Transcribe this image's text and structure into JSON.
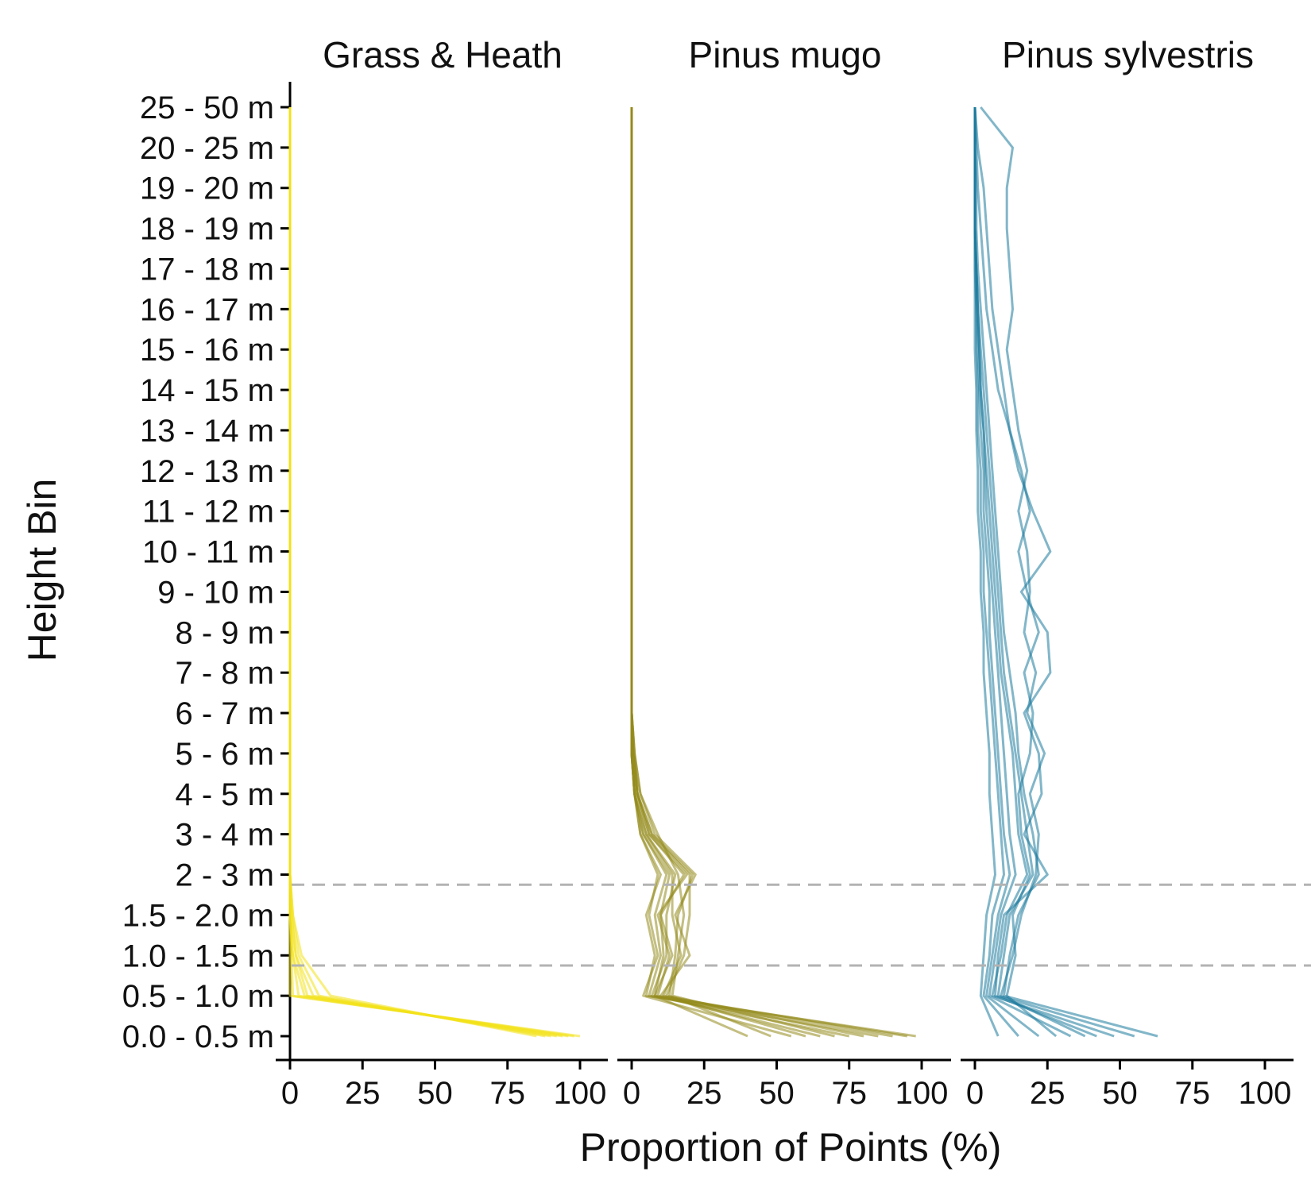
{
  "chart_data": {
    "type": "line",
    "ylabel": "Height Bin",
    "xlabel": "Proportion of Points (%)",
    "height_bins": [
      "0.0 - 0.5 m",
      "0.5 - 1.0 m",
      "1.0 - 1.5 m",
      "1.5 - 2.0 m",
      "2 - 3 m",
      "3 - 4 m",
      "4 - 5 m",
      "5 - 6 m",
      "6 - 7 m",
      "7 - 8 m",
      "8 - 9 m",
      "9 - 10 m",
      "10 - 11 m",
      "11 - 12 m",
      "12 - 13 m",
      "13 - 14 m",
      "14 - 15 m",
      "15 - 16 m",
      "16 - 17 m",
      "17 - 18 m",
      "18 - 19 m",
      "19 - 20 m",
      "20 - 25 m",
      "25 - 50 m"
    ],
    "xlim": [
      0,
      100
    ],
    "x_ticks": [
      "0",
      "25",
      "50",
      "75",
      "100"
    ],
    "reference_lines_y": [
      1.75,
      3.75
    ],
    "panels": [
      {
        "title": "Grass & Heath",
        "color": "#f2e11a",
        "series": [
          {
            "values": [
              100,
              0,
              0,
              0,
              0,
              0,
              0,
              0,
              0,
              0,
              0,
              0,
              0,
              0,
              0,
              0,
              0,
              0,
              0,
              0,
              0,
              0,
              0,
              0
            ]
          },
          {
            "values": [
              98,
              1,
              0.5,
              0,
              0,
              0,
              0,
              0,
              0,
              0,
              0,
              0,
              0,
              0,
              0,
              0,
              0,
              0,
              0,
              0,
              0,
              0,
              0,
              0
            ]
          },
          {
            "values": [
              96,
              3,
              1,
              0,
              0,
              0,
              0,
              0,
              0,
              0,
              0,
              0,
              0,
              0,
              0,
              0,
              0,
              0,
              0,
              0,
              0,
              0,
              0,
              0
            ]
          },
          {
            "values": [
              94,
              5,
              1,
              0,
              0,
              0,
              0,
              0,
              0,
              0,
              0,
              0,
              0,
              0,
              0,
              0,
              0,
              0,
              0,
              0,
              0,
              0,
              0,
              0
            ]
          },
          {
            "values": [
              92,
              6,
              2,
              0.5,
              0,
              0,
              0,
              0,
              0,
              0,
              0,
              0,
              0,
              0,
              0,
              0,
              0,
              0,
              0,
              0,
              0,
              0,
              0,
              0
            ]
          },
          {
            "values": [
              90,
              8,
              2,
              0.5,
              0,
              0,
              0,
              0,
              0,
              0,
              0,
              0,
              0,
              0,
              0,
              0,
              0,
              0,
              0,
              0,
              0,
              0,
              0,
              0
            ]
          },
          {
            "values": [
              88,
              10,
              3,
              1,
              0,
              0,
              0,
              0,
              0,
              0,
              0,
              0,
              0,
              0,
              0,
              0,
              0,
              0,
              0,
              0,
              0,
              0,
              0,
              0
            ]
          },
          {
            "values": [
              85,
              14,
              4,
              1,
              0,
              0,
              0,
              0,
              0,
              0,
              0,
              0,
              0,
              0,
              0,
              0,
              0,
              0,
              0,
              0,
              0,
              0,
              0,
              0
            ]
          }
        ]
      },
      {
        "title": "Pinus mugo",
        "color": "#938a1c",
        "series": [
          {
            "values": [
              98,
              5,
              8,
              5,
              10,
              3,
              1,
              0,
              0,
              0,
              0,
              0,
              0,
              0,
              0,
              0,
              0,
              0,
              0,
              0,
              0,
              0,
              0,
              0
            ]
          },
          {
            "values": [
              95,
              8,
              14,
              10,
              18,
              6,
              2,
              0.5,
              0,
              0,
              0,
              0,
              0,
              0,
              0,
              0,
              0,
              0,
              0,
              0,
              0,
              0,
              0,
              0
            ]
          },
          {
            "values": [
              90,
              10,
              20,
              15,
              22,
              8,
              3,
              1,
              0,
              0,
              0,
              0,
              0,
              0,
              0,
              0,
              0,
              0,
              0,
              0,
              0,
              0,
              0,
              0
            ]
          },
          {
            "values": [
              85,
              6,
              10,
              8,
              12,
              4,
              1,
              0,
              0,
              0,
              0,
              0,
              0,
              0,
              0,
              0,
              0,
              0,
              0,
              0,
              0,
              0,
              0,
              0
            ]
          },
          {
            "values": [
              80,
              12,
              18,
              20,
              20,
              7,
              2,
              0.5,
              0,
              0,
              0,
              0,
              0,
              0,
              0,
              0,
              0,
              0,
              0,
              0,
              0,
              0,
              0,
              0
            ]
          },
          {
            "values": [
              75,
              7,
              12,
              12,
              15,
              5,
              1.5,
              0.5,
              0,
              0,
              0,
              0,
              0,
              0,
              0,
              0,
              0,
              0,
              0,
              0,
              0,
              0,
              0,
              0
            ]
          },
          {
            "values": [
              70,
              14,
              16,
              18,
              16,
              9,
              3,
              1,
              0,
              0,
              0,
              0,
              0,
              0,
              0,
              0,
              0,
              0,
              0,
              0,
              0,
              0,
              0,
              0
            ]
          },
          {
            "values": [
              65,
              9,
              13,
              9,
              19,
              6,
              2,
              0.5,
              0,
              0,
              0,
              0,
              0,
              0,
              0,
              0,
              0,
              0,
              0,
              0,
              0,
              0,
              0,
              0
            ]
          },
          {
            "values": [
              60,
              11,
              17,
              14,
              14,
              5,
              1,
              0,
              0,
              0,
              0,
              0,
              0,
              0,
              0,
              0,
              0,
              0,
              0,
              0,
              0,
              0,
              0,
              0
            ]
          },
          {
            "values": [
              55,
              4,
              9,
              6,
              9,
              3,
              1,
              0,
              0,
              0,
              0,
              0,
              0,
              0,
              0,
              0,
              0,
              0,
              0,
              0,
              0,
              0,
              0,
              0
            ]
          },
          {
            "values": [
              48,
              13,
              15,
              16,
              21,
              7,
              2,
              1,
              0,
              0,
              0,
              0,
              0,
              0,
              0,
              0,
              0,
              0,
              0,
              0,
              0,
              0,
              0,
              0
            ]
          },
          {
            "values": [
              40,
              8,
              11,
              10,
              13,
              4,
              1,
              0,
              0,
              0,
              0,
              0,
              0,
              0,
              0,
              0,
              0,
              0,
              0,
              0,
              0,
              0,
              0,
              0
            ]
          }
        ]
      },
      {
        "title": "Pinus sylvestris",
        "color": "#1b7a9c",
        "series": [
          {
            "values": [
              63,
              10,
              12,
              15,
              22,
              20,
              17,
              15,
              14,
              12,
              10,
              9,
              8,
              7,
              6,
              5,
              4,
              3,
              2,
              1,
              0.5,
              0.5,
              0,
              0
            ]
          },
          {
            "values": [
              55,
              8,
              10,
              12,
              20,
              18,
              16,
              14,
              12,
              10,
              9,
              8,
              7,
              6,
              5,
              4,
              3,
              2,
              1,
              0.5,
              0,
              0,
              0,
              0
            ]
          },
          {
            "values": [
              48,
              6,
              9,
              11,
              18,
              15,
              14,
              13,
              11,
              9,
              8,
              7,
              6,
              5,
              4,
              3,
              2,
              1.5,
              1,
              0.5,
              0,
              0,
              0,
              0
            ]
          },
          {
            "values": [
              42,
              7,
              8,
              10,
              25,
              17,
              23,
              22,
              17,
              26,
              25,
              16,
              26,
              20,
              15,
              12,
              10,
              8,
              6,
              5,
              4,
              3,
              1,
              0
            ]
          },
          {
            "values": [
              38,
              9,
              13,
              16,
              21,
              22,
              19,
              24,
              18,
              21,
              17,
              19,
              18,
              15,
              18,
              15,
              13,
              11,
              13,
              12,
              11,
              11,
              13,
              2
            ]
          },
          {
            "values": [
              33,
              5,
              7,
              9,
              14,
              12,
              11,
              10,
              9,
              8,
              7,
              6,
              5,
              4,
              3.5,
              3,
              2,
              1.5,
              1,
              0.5,
              0,
              0,
              0,
              0
            ]
          },
          {
            "values": [
              28,
              11,
              14,
              13,
              19,
              16,
              15,
              19,
              20,
              17,
              22,
              18,
              15,
              19,
              16,
              12,
              8,
              6,
              4,
              3,
              2,
              1,
              0.5,
              0
            ]
          },
          {
            "values": [
              22,
              4,
              6,
              8,
              12,
              10,
              9,
              8,
              7,
              6,
              5,
              5,
              4,
              3,
              3,
              2,
              1.5,
              1,
              0.5,
              0.5,
              0,
              0,
              0,
              0
            ]
          },
          {
            "values": [
              15,
              3,
              5,
              6,
              10,
              9,
              8,
              7,
              6,
              5,
              4,
              3,
              3,
              2,
              2,
              1,
              1,
              0.5,
              0.5,
              0,
              0,
              0,
              0,
              0
            ]
          },
          {
            "values": [
              8,
              2,
              3,
              4,
              7,
              6,
              5,
              5,
              4,
              3,
              3,
              2,
              2,
              1,
              1,
              0.5,
              0.5,
              0,
              0,
              0,
              0,
              0,
              0,
              0
            ]
          }
        ]
      }
    ]
  }
}
